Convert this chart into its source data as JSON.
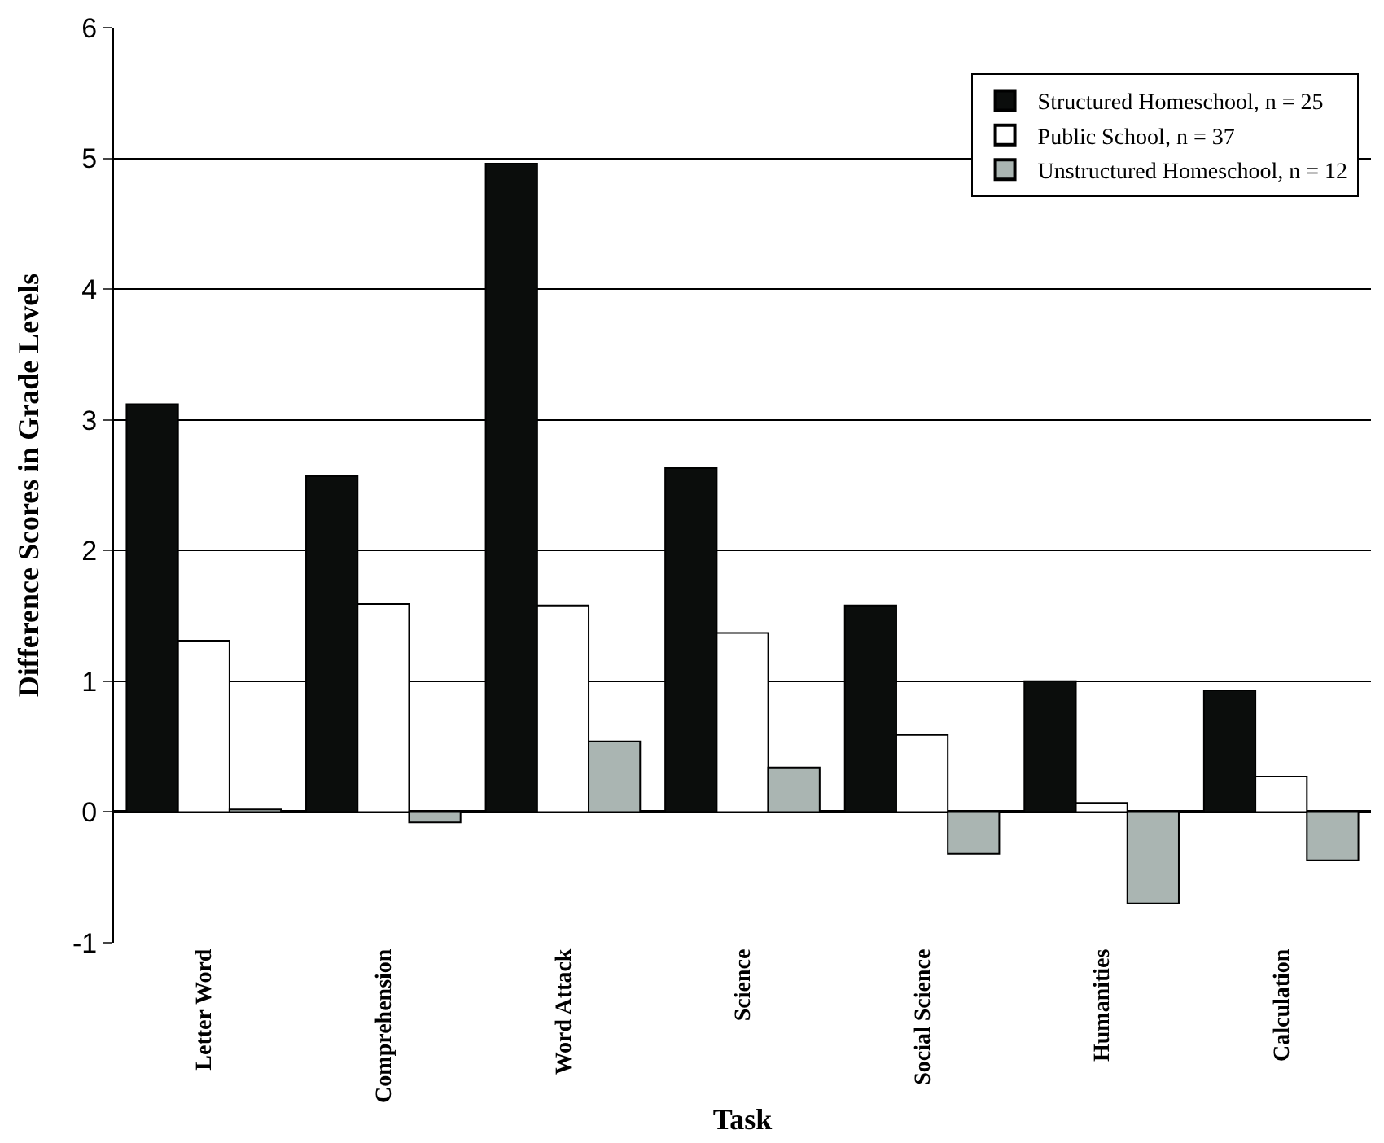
{
  "chart_data": {
    "type": "bar",
    "xlabel": "Task",
    "ylabel": "Difference Scores in Grade Levels",
    "categories": [
      "Letter Word",
      "Comprehension",
      "Word Attack",
      "Science",
      "Social Science",
      "Humanities",
      "Calculation"
    ],
    "series": [
      {
        "name": "Structured Homeschool, n = 25",
        "color": "#0b0d0c",
        "values": [
          3.12,
          2.57,
          4.96,
          2.63,
          1.58,
          1.0,
          0.93
        ]
      },
      {
        "name": "Public School, n = 37",
        "color": "#ffffff",
        "values": [
          1.31,
          1.59,
          1.58,
          1.37,
          0.59,
          0.07,
          0.27
        ]
      },
      {
        "name": "Unstructured Homeschool, n = 12",
        "color": "#aab5b2",
        "values": [
          0.02,
          -0.08,
          0.54,
          0.34,
          -0.32,
          -0.7,
          -0.37
        ]
      }
    ],
    "ylim": [
      -1,
      6
    ],
    "yticks": [
      -1,
      0,
      1,
      2,
      3,
      4,
      5,
      6
    ],
    "grid": "y",
    "legend": "top right"
  }
}
